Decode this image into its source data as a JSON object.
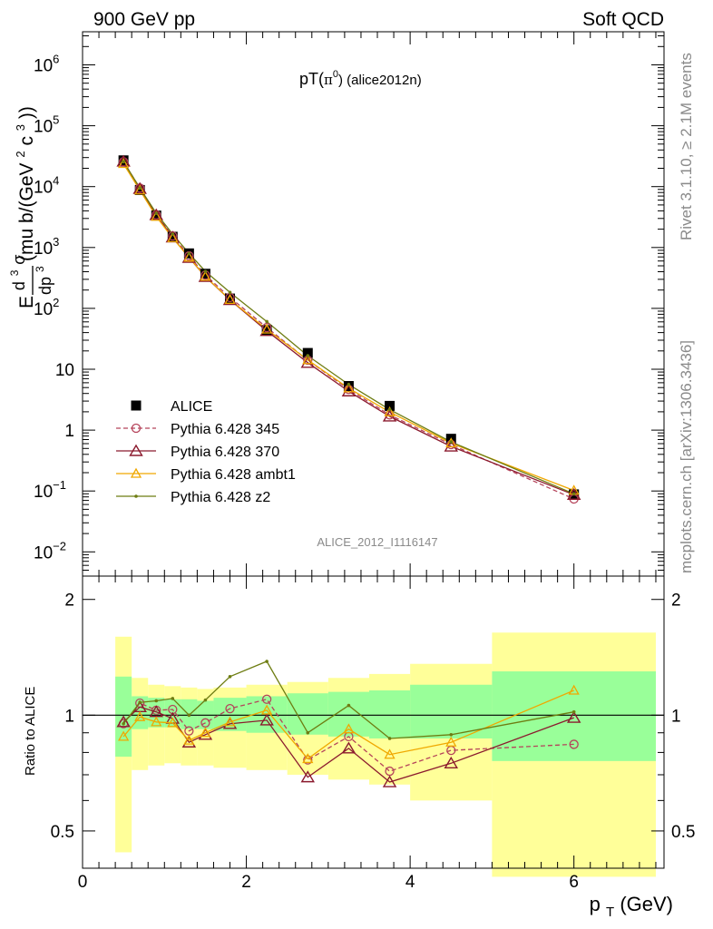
{
  "header": {
    "left": "900 GeV pp",
    "right": "Soft QCD"
  },
  "title": {
    "main": "pT(",
    "pi": "π",
    "zero": "0",
    "close": ")",
    "sub": " (alice2012n)"
  },
  "watermark": "ALICE_2012_I1116147",
  "side_text": {
    "rivet": "Rivet 3.1.10, ≥ 2.1M events",
    "mcplots": "mcplots.cern.ch [arXiv:1306.3436]"
  },
  "ylabel_main": {
    "E": "E",
    "d3sigma": "d",
    "sup3": "3",
    "sigma": "σ",
    "dp": "dp",
    "dp3": "3",
    "units": "(mu b/(GeV",
    "units2": "2",
    "units3": "c",
    "units4": "3",
    "units5": "))"
  },
  "ylabel_ratio": "Ratio to ALICE",
  "xlabel": {
    "p": "p",
    "T": "T",
    "unit": " (GeV)"
  },
  "main_ticks": {
    "y": [
      {
        "v": 1000000.0,
        "base": "10",
        "exp": "6"
      },
      {
        "v": 100000.0,
        "base": "10",
        "exp": "5"
      },
      {
        "v": 10000.0,
        "base": "10",
        "exp": "4"
      },
      {
        "v": 1000.0,
        "base": "10",
        "exp": "3"
      },
      {
        "v": 100.0,
        "base": "10",
        "exp": "2"
      },
      {
        "v": 10,
        "base": "10",
        "exp": ""
      },
      {
        "v": 1,
        "base": "1",
        "exp": ""
      },
      {
        "v": 0.1,
        "base": "10",
        "exp": "−1"
      },
      {
        "v": 0.01,
        "base": "10",
        "exp": "−2"
      }
    ]
  },
  "ratio_ticks": {
    "y": [
      {
        "v": 2,
        "label": "2"
      },
      {
        "v": 1,
        "label": "1"
      },
      {
        "v": 0.5,
        "label": "0.5"
      }
    ],
    "x": [
      {
        "v": 0,
        "label": "0"
      },
      {
        "v": 2,
        "label": "2"
      },
      {
        "v": 4,
        "label": "4"
      },
      {
        "v": 6,
        "label": "6"
      }
    ]
  },
  "chart_data": {
    "type": "line",
    "title": "pT(π0) (alice2012n)",
    "xlabel": "pT (GeV)",
    "ylabel": "Ed3σ/dp3 (mu b/(GeV2c3))",
    "xlim": [
      0,
      7.1
    ],
    "ylim_main": [
      0.004,
      3500000
    ],
    "yscale_main": "log",
    "ylim_ratio": [
      0.4,
      2.3
    ],
    "yscale_ratio": "log",
    "legend_position": "middle-left",
    "x": [
      0.5,
      0.7,
      0.9,
      1.1,
      1.3,
      1.5,
      1.8,
      2.25,
      2.75,
      3.25,
      3.75,
      4.5,
      6.0
    ],
    "bins": [
      [
        0.4,
        0.6
      ],
      [
        0.6,
        0.8
      ],
      [
        0.8,
        1.0
      ],
      [
        1.0,
        1.2
      ],
      [
        1.2,
        1.4
      ],
      [
        1.4,
        1.6
      ],
      [
        1.6,
        2.0
      ],
      [
        2.0,
        2.5
      ],
      [
        2.5,
        3.0
      ],
      [
        3.0,
        3.5
      ],
      [
        3.5,
        4.0
      ],
      [
        4.0,
        5.0
      ],
      [
        5.0,
        7.0
      ]
    ],
    "data": {
      "name": "ALICE",
      "values": [
        27000,
        8800,
        3350,
        1500,
        800,
        370,
        145,
        44,
        18.5,
        5.3,
        2.5,
        0.72,
        0.088
      ],
      "band_inner": [
        [
          0.78,
          1.26
        ],
        [
          0.92,
          1.12
        ],
        [
          0.93,
          1.11
        ],
        [
          0.93,
          1.1
        ],
        [
          0.92,
          1.1
        ],
        [
          0.92,
          1.09
        ],
        [
          0.91,
          1.11
        ],
        [
          0.9,
          1.12
        ],
        [
          0.89,
          1.14
        ],
        [
          0.88,
          1.15
        ],
        [
          0.87,
          1.16
        ],
        [
          0.87,
          1.2
        ],
        [
          0.76,
          1.3
        ]
      ],
      "band_outer": [
        [
          0.44,
          1.6
        ],
        [
          0.72,
          1.25
        ],
        [
          0.74,
          1.2
        ],
        [
          0.75,
          1.19
        ],
        [
          0.74,
          1.18
        ],
        [
          0.74,
          1.17
        ],
        [
          0.73,
          1.18
        ],
        [
          0.72,
          1.2
        ],
        [
          0.7,
          1.22
        ],
        [
          0.68,
          1.25
        ],
        [
          0.66,
          1.28
        ],
        [
          0.6,
          1.36
        ],
        [
          0.38,
          1.64
        ]
      ]
    },
    "series": [
      {
        "name": "Pythia 6.428 345",
        "color": "#b5435a",
        "dashed": true,
        "marker": "circle",
        "values": [
          25650,
          9460,
          3450,
          1550,
          728,
          352,
          151,
          48.4,
          14.1,
          4.66,
          1.78,
          0.58,
          0.074
        ],
        "ratio": [
          0.95,
          1.075,
          1.03,
          1.035,
          0.91,
          0.955,
          1.04,
          1.1,
          0.765,
          0.88,
          0.715,
          0.81,
          0.84
        ]
      },
      {
        "name": "Pythia 6.428 370",
        "color": "#8b1a2e",
        "dashed": false,
        "marker": "triangle",
        "values": [
          25920,
          9240,
          3420,
          1470,
          680,
          330,
          138,
          42.7,
          12.8,
          4.35,
          1.68,
          0.54,
          0.087
        ],
        "ratio": [
          0.96,
          1.05,
          1.02,
          0.98,
          0.85,
          0.89,
          0.95,
          0.97,
          0.69,
          0.82,
          0.67,
          0.75,
          0.985
        ]
      },
      {
        "name": "Pythia 6.428 ambt1",
        "color": "#f0a800",
        "dashed": false,
        "marker": "triangle-small",
        "values": [
          23760,
          8710,
          3220,
          1430,
          688,
          333,
          139,
          45.3,
          14.2,
          4.88,
          1.98,
          0.61,
          0.102
        ],
        "ratio": [
          0.88,
          0.99,
          0.96,
          0.955,
          0.86,
          0.9,
          0.96,
          1.03,
          0.77,
          0.92,
          0.79,
          0.85,
          1.16
        ]
      },
      {
        "name": "Pythia 6.428 z2",
        "color": "#6e7d12",
        "dashed": false,
        "marker": "dot",
        "values": [
          25650,
          9500,
          3650,
          1660,
          800,
          405,
          183,
          60.7,
          16.7,
          5.62,
          2.18,
          0.64,
          0.09
        ],
        "ratio": [
          0.95,
          1.08,
          1.09,
          1.105,
          1.0,
          1.095,
          1.26,
          1.38,
          0.9,
          1.06,
          0.87,
          0.89,
          1.02
        ]
      }
    ]
  }
}
